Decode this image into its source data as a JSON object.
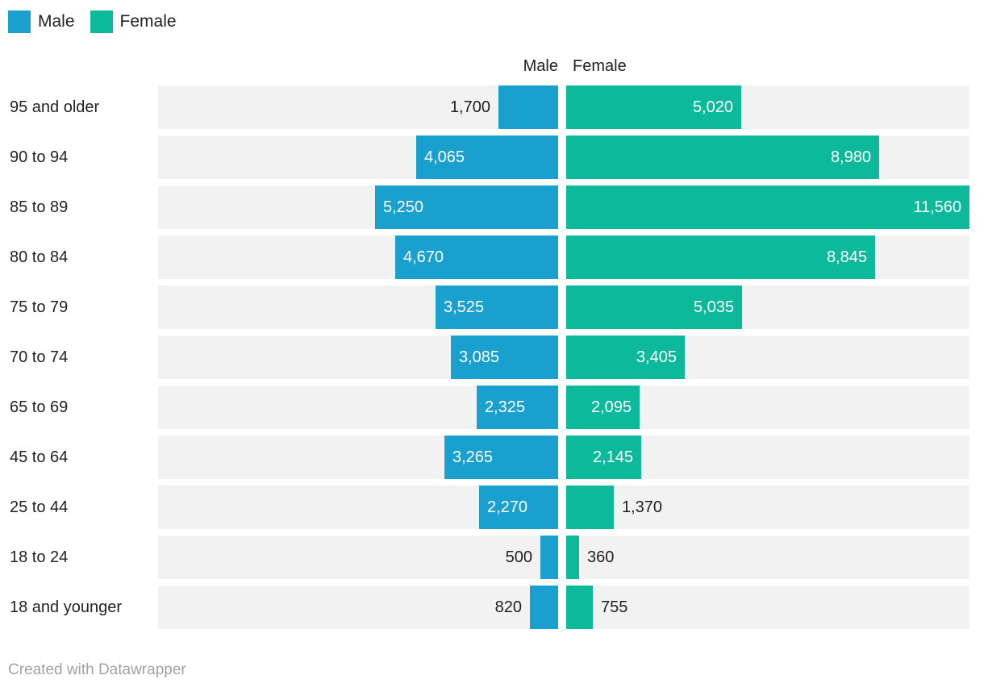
{
  "legend": {
    "items": [
      {
        "label": "Male",
        "color": "#1aa0ce"
      },
      {
        "label": "Female",
        "color": "#0cb99a"
      }
    ]
  },
  "headers": {
    "male": "Male",
    "female": "Female"
  },
  "chart_data": {
    "type": "bar",
    "variant": "population-pyramid-split-bars",
    "title": "",
    "categories": [
      "95 and older",
      "90 to 94",
      "85 to 89",
      "80 to 84",
      "75 to 79",
      "70 to 74",
      "65 to 69",
      "45 to 64",
      "25 to 44",
      "18 to 24",
      "18 and younger"
    ],
    "series": [
      {
        "name": "Male",
        "color": "#1aa0ce",
        "values": [
          1700,
          4065,
          5250,
          4670,
          3525,
          3085,
          2325,
          3265,
          2270,
          500,
          820
        ],
        "labels": [
          "1,700",
          "4,065",
          "5,250",
          "4,670",
          "3,525",
          "3,085",
          "2,325",
          "3,265",
          "2,270",
          "500",
          "820"
        ]
      },
      {
        "name": "Female",
        "color": "#0cb99a",
        "values": [
          5020,
          8980,
          11560,
          8845,
          5035,
          3405,
          2095,
          2145,
          1370,
          360,
          755
        ],
        "labels": [
          "5,020",
          "8,980",
          "11,560",
          "8,845",
          "5,035",
          "3,405",
          "2,095",
          "2,145",
          "1,370",
          "360",
          "755"
        ]
      }
    ],
    "xlim": [
      0,
      11560
    ],
    "grid": false,
    "legend_position": "top-left",
    "row_background": "#f2f2f2"
  },
  "colors": {
    "male": "#1aa0ce",
    "female": "#0cb99a",
    "row_bg": "#f2f2f2",
    "text": "#222222",
    "value_text_inside": "#ffffff",
    "value_text_outside": "#1f1f1f",
    "muted": "#a2a2a2"
  },
  "footer": {
    "credit": "Created with Datawrapper"
  }
}
